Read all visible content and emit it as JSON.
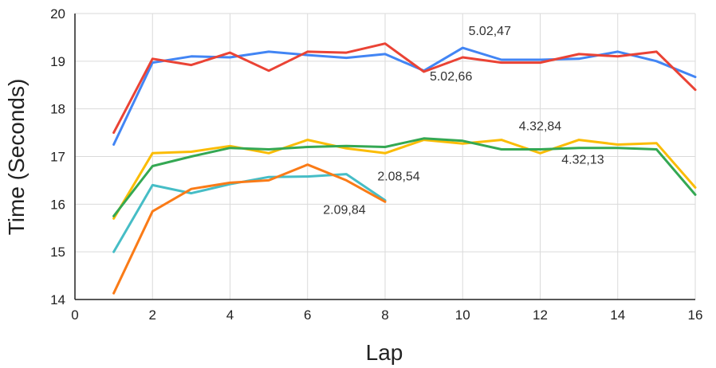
{
  "chart_data": {
    "type": "line",
    "title": "",
    "xlabel": "Lap",
    "ylabel": "Time (Seconds)",
    "xlim": [
      0,
      16
    ],
    "ylim": [
      14,
      20
    ],
    "xticks": [
      0,
      2,
      4,
      6,
      8,
      10,
      12,
      14,
      16
    ],
    "yticks": [
      14,
      15,
      16,
      17,
      18,
      19,
      20
    ],
    "grid": true,
    "legend": "none",
    "series": [
      {
        "color": "#4285f4",
        "x": [
          1,
          2,
          3,
          4,
          5,
          6,
          7,
          8,
          9,
          10,
          11,
          12,
          13,
          14,
          15,
          16
        ],
        "y": [
          17.25,
          18.97,
          19.1,
          19.08,
          19.2,
          19.13,
          19.07,
          19.15,
          18.8,
          19.28,
          19.03,
          19.03,
          19.05,
          19.2,
          19.0,
          18.67
        ]
      },
      {
        "color": "#ea4335",
        "x": [
          1,
          2,
          3,
          4,
          5,
          6,
          7,
          8,
          9,
          10,
          11,
          12,
          13,
          14,
          15,
          16
        ],
        "y": [
          17.5,
          19.05,
          18.92,
          19.18,
          18.8,
          19.2,
          19.18,
          19.37,
          18.78,
          19.08,
          18.97,
          18.97,
          19.15,
          19.1,
          19.2,
          18.4
        ]
      },
      {
        "color": "#fbbc04",
        "x": [
          1,
          2,
          3,
          4,
          5,
          6,
          7,
          8,
          9,
          10,
          11,
          12,
          13,
          14,
          15,
          16
        ],
        "y": [
          15.7,
          17.07,
          17.1,
          17.22,
          17.07,
          17.35,
          17.17,
          17.07,
          17.35,
          17.27,
          17.35,
          17.07,
          17.35,
          17.25,
          17.28,
          16.35
        ]
      },
      {
        "color": "#34a853",
        "x": [
          1,
          2,
          3,
          4,
          5,
          6,
          7,
          8,
          9,
          10,
          11,
          12,
          13,
          14,
          15,
          16
        ],
        "y": [
          15.75,
          16.8,
          17.0,
          17.18,
          17.15,
          17.2,
          17.22,
          17.2,
          17.38,
          17.33,
          17.15,
          17.15,
          17.18,
          17.18,
          17.15,
          16.2
        ]
      },
      {
        "color": "#46bdc6",
        "x": [
          1,
          2,
          3,
          4,
          5,
          6,
          7,
          8
        ],
        "y": [
          15.0,
          16.4,
          16.23,
          16.42,
          16.57,
          16.58,
          16.63,
          16.08
        ]
      },
      {
        "color": "#fa7b17",
        "x": [
          1,
          2,
          3,
          4,
          5,
          6,
          7,
          8
        ],
        "y": [
          14.13,
          15.85,
          16.32,
          16.45,
          16.5,
          16.83,
          16.5,
          16.05
        ]
      }
    ],
    "annotations": [
      {
        "text": "5.02,47",
        "x": 10.7,
        "y": 19.55
      },
      {
        "text": "5.02,66",
        "x": 9.7,
        "y": 18.6
      },
      {
        "text": "4.32,84",
        "x": 12.0,
        "y": 17.55
      },
      {
        "text": "4.32,13",
        "x": 13.1,
        "y": 16.85
      },
      {
        "text": "2.08,54",
        "x": 8.35,
        "y": 16.5
      },
      {
        "text": "2.09,84",
        "x": 6.95,
        "y": 15.8
      }
    ]
  }
}
